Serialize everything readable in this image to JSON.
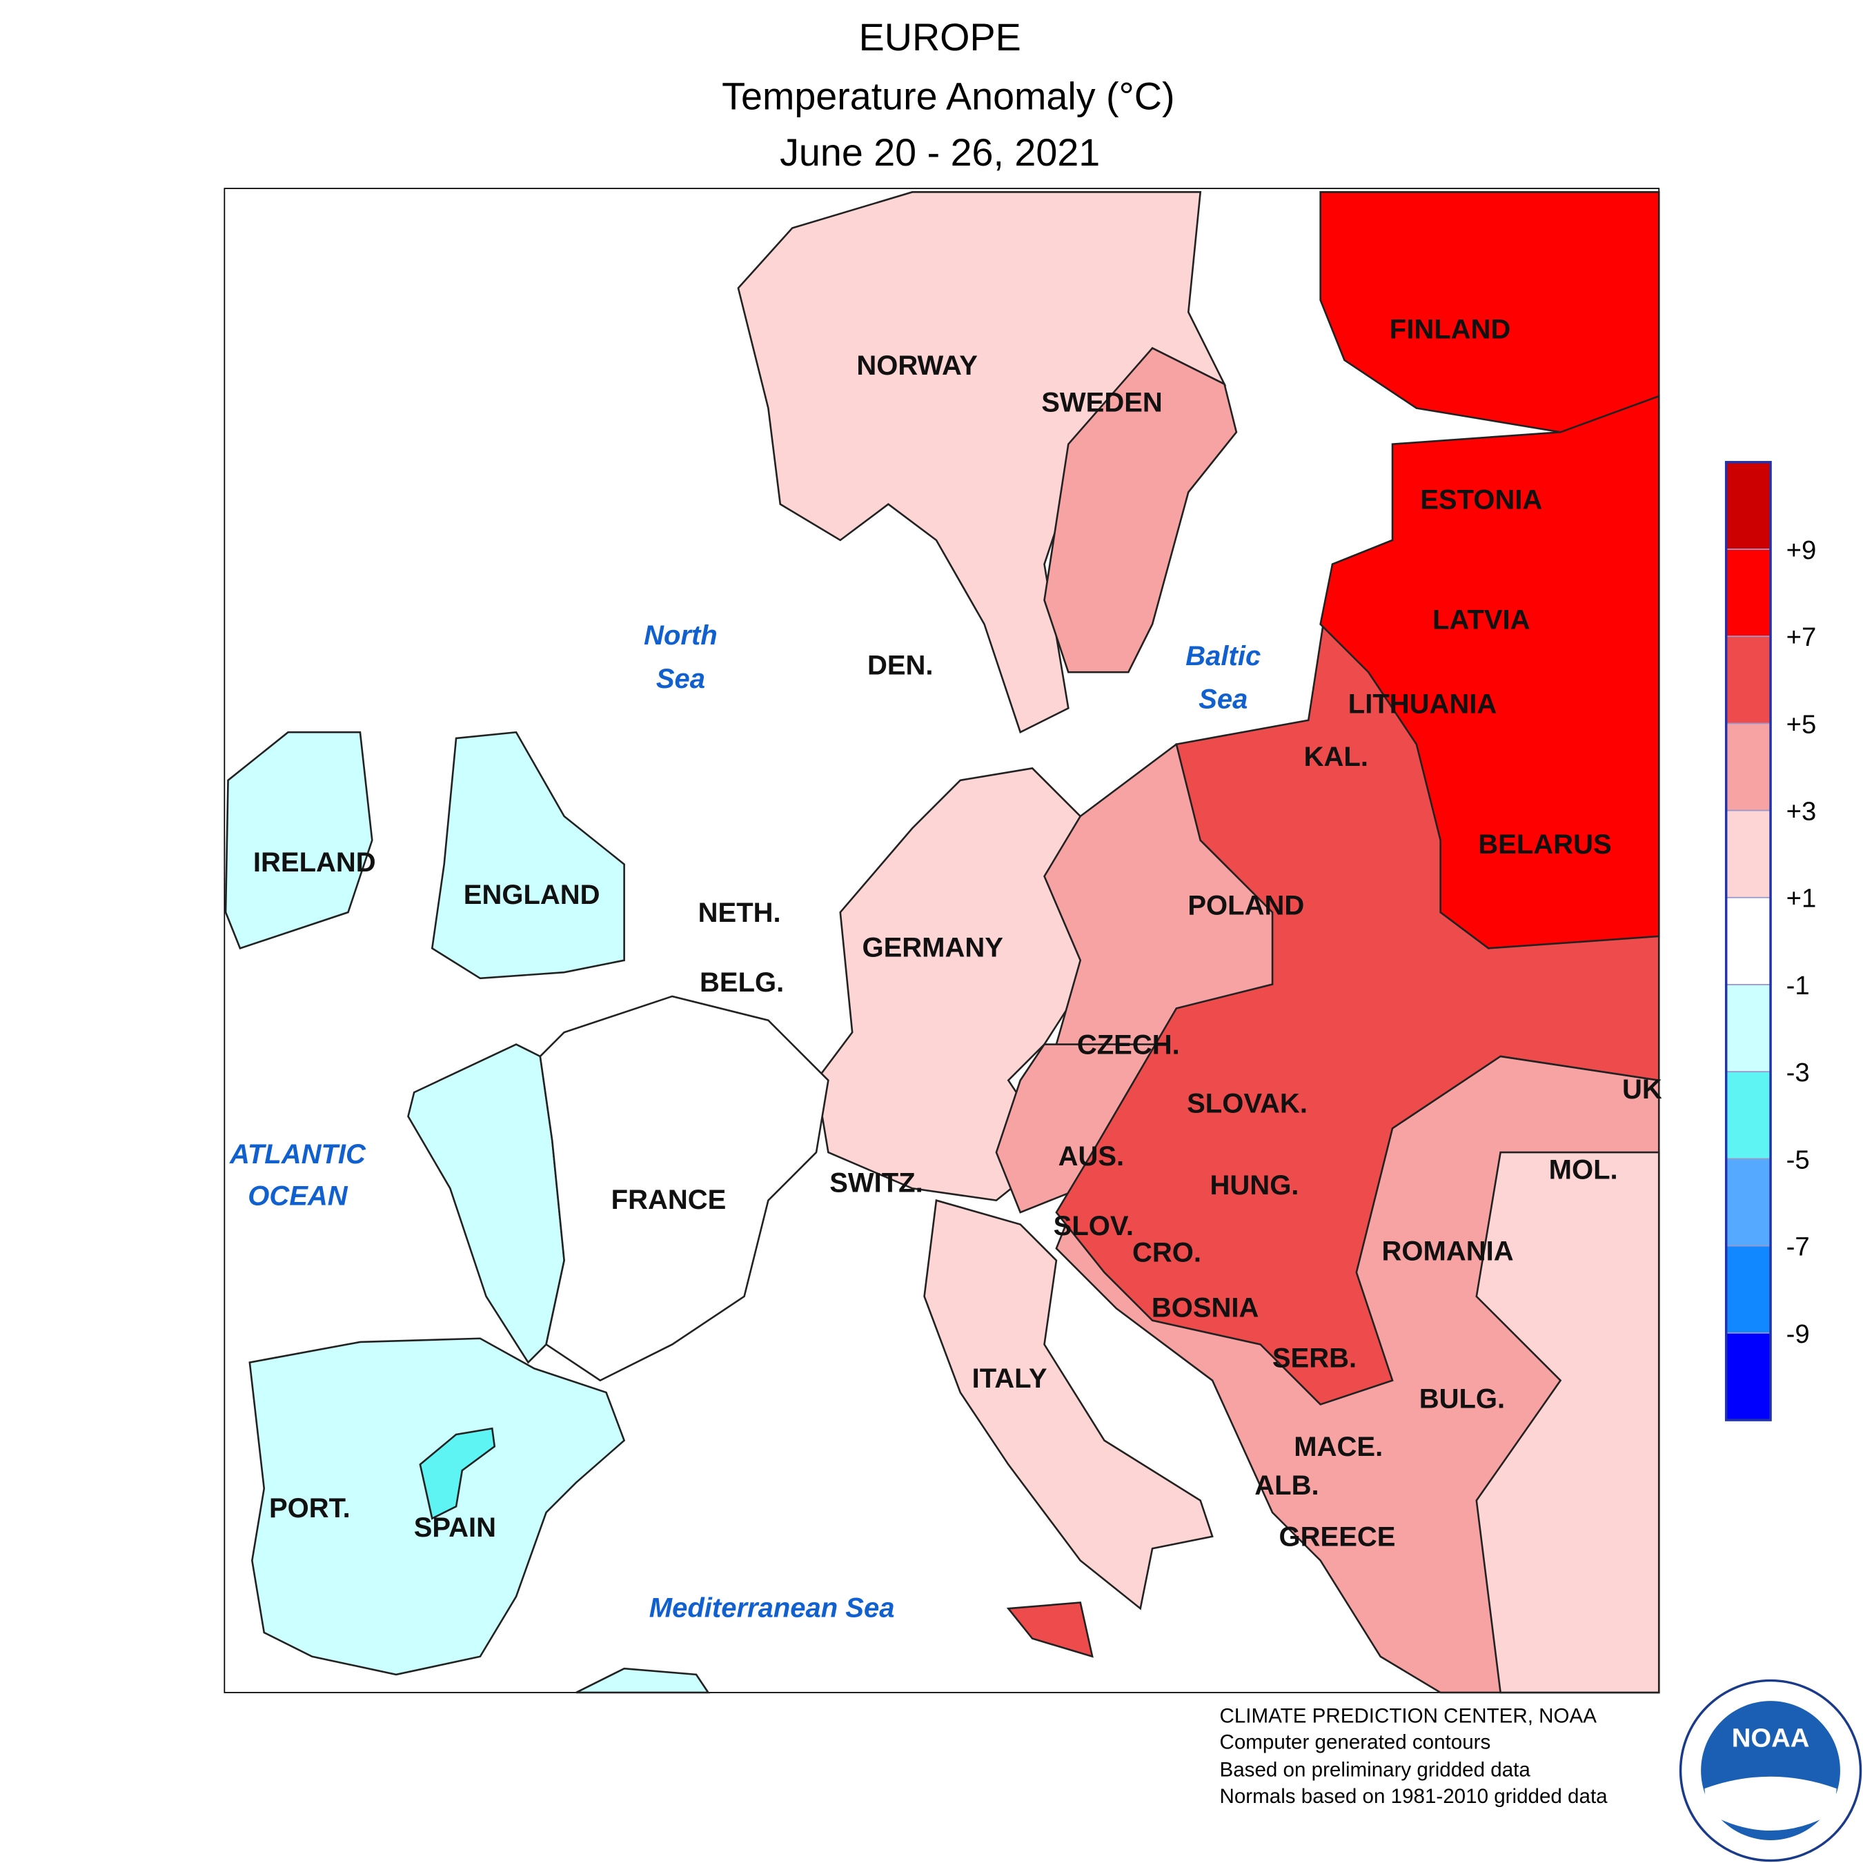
{
  "header": {
    "title": "EUROPE",
    "subtitle": "Temperature Anomaly (°C)",
    "period": "June 20 - 26, 2021"
  },
  "map": {
    "countries": [
      "FINLAND",
      "NORWAY",
      "SWEDEN",
      "ESTONIA",
      "LATVIA",
      "LITHUANIA",
      "KAL.",
      "DEN.",
      "BELARUS",
      "POLAND",
      "IRELAND",
      "ENGLAND",
      "NETH.",
      "BELG.",
      "GERMANY",
      "CZECH.",
      "SLOVAK.",
      "UK",
      "MOL.",
      "AUS.",
      "HUNG.",
      "SWITZ.",
      "FRANCE",
      "SLOV.",
      "CRO.",
      "ROMANIA",
      "BOSNIA",
      "SERB.",
      "ITALY",
      "BULG.",
      "MACE.",
      "ALB.",
      "GREECE",
      "PORT.",
      "SPAIN"
    ],
    "seas": [
      "North",
      "Sea",
      "Baltic",
      "Sea",
      "ATLANTIC",
      "OCEAN",
      "Mediterranean Sea"
    ]
  },
  "legend": {
    "colors": [
      "#cc0000",
      "#ff0000",
      "#ee4c4c",
      "#f8a3a3",
      "#fdd5d5",
      "#ffffff",
      "#ccffff",
      "#5ff4f4",
      "#55aaff",
      "#1188ff",
      "#0000ff"
    ],
    "labels": [
      "+9",
      "+7",
      "+5",
      "+3",
      "+1",
      "-1",
      "-3",
      "-5",
      "-7",
      "-9"
    ]
  },
  "footer": {
    "lines": [
      "CLIMATE PREDICTION CENTER, NOAA",
      "Computer generated contours",
      "Based on preliminary gridded data",
      "Normals based on 1981-2010 gridded data"
    ],
    "logo": "NOAA"
  }
}
